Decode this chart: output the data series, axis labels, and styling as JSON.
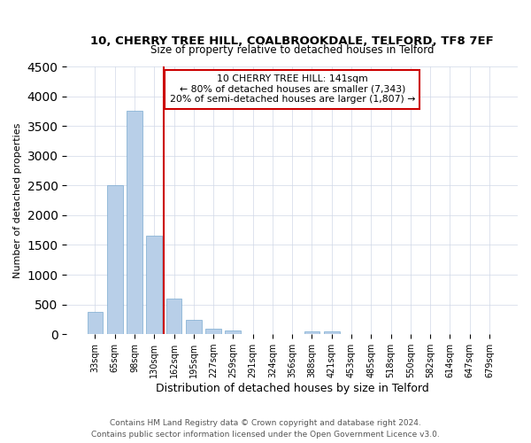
{
  "title": "10, CHERRY TREE HILL, COALBROOKDALE, TELFORD, TF8 7EF",
  "subtitle": "Size of property relative to detached houses in Telford",
  "xlabel": "Distribution of detached houses by size in Telford",
  "ylabel": "Number of detached properties",
  "categories": [
    "33sqm",
    "65sqm",
    "98sqm",
    "130sqm",
    "162sqm",
    "195sqm",
    "227sqm",
    "259sqm",
    "291sqm",
    "324sqm",
    "356sqm",
    "388sqm",
    "421sqm",
    "453sqm",
    "485sqm",
    "518sqm",
    "550sqm",
    "582sqm",
    "614sqm",
    "647sqm",
    "679sqm"
  ],
  "values": [
    375,
    2500,
    3750,
    1650,
    600,
    240,
    100,
    60,
    0,
    0,
    0,
    55,
    50,
    0,
    0,
    0,
    0,
    0,
    0,
    0,
    0
  ],
  "bar_color": "#b8cfe8",
  "bar_edge_color": "#7aaad0",
  "marker_color": "#cc0000",
  "annotation_title": "10 CHERRY TREE HILL: 141sqm",
  "annotation_line1": "← 80% of detached houses are smaller (7,343)",
  "annotation_line2": "20% of semi-detached houses are larger (1,807) →",
  "annotation_box_color": "#ffffff",
  "annotation_box_edge": "#cc0000",
  "ylim": [
    0,
    4500
  ],
  "yticks": [
    0,
    500,
    1000,
    1500,
    2000,
    2500,
    3000,
    3500,
    4000,
    4500
  ],
  "footer_line1": "Contains HM Land Registry data © Crown copyright and database right 2024.",
  "footer_line2": "Contains public sector information licensed under the Open Government Licence v3.0.",
  "bg_color": "#ffffff",
  "grid_color": "#d0d8e8"
}
